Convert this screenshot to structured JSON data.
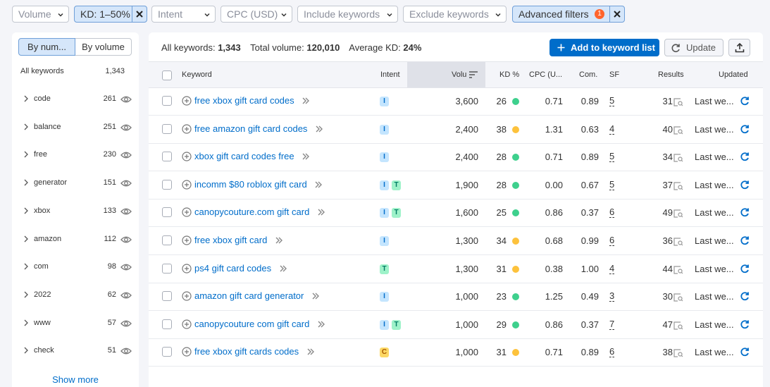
{
  "filters": {
    "volume": "Volume",
    "kd": "KD: 1–50%",
    "intent": "Intent",
    "cpc": "CPC (USD)",
    "include": "Include keywords",
    "exclude": "Exclude keywords",
    "advanced": "Advanced filters",
    "advanced_count": "1"
  },
  "sidebar": {
    "by_number": "By num...",
    "by_volume": "By volume",
    "all_label": "All keywords",
    "all_count": "1,343",
    "groups": [
      {
        "name": "code",
        "count": "261"
      },
      {
        "name": "balance",
        "count": "251"
      },
      {
        "name": "free",
        "count": "230"
      },
      {
        "name": "generator",
        "count": "151"
      },
      {
        "name": "xbox",
        "count": "133"
      },
      {
        "name": "amazon",
        "count": "112"
      },
      {
        "name": "com",
        "count": "98"
      },
      {
        "name": "2022",
        "count": "62"
      },
      {
        "name": "www",
        "count": "57"
      },
      {
        "name": "check",
        "count": "51"
      }
    ],
    "show_more": "Show more"
  },
  "summary": {
    "all_label": "All keywords:",
    "all_value": "1,343",
    "volume_label": "Total volume:",
    "volume_value": "120,010",
    "kd_label": "Average KD:",
    "kd_value": "24%"
  },
  "actions": {
    "add": "Add to keyword list",
    "update": "Update"
  },
  "table": {
    "headers": {
      "keyword": "Keyword",
      "intent": "Intent",
      "volume": "Volu",
      "kd": "KD %",
      "cpc": "CPC (U...",
      "com": "Com.",
      "sf": "SF",
      "results": "Results",
      "updated": "Updated"
    },
    "rows": [
      {
        "keyword": "free xbox gift card codes",
        "intents": [
          "I"
        ],
        "volume": "3,600",
        "kd": "26",
        "kd_color": "#3ed08d",
        "cpc": "0.71",
        "com": "0.89",
        "sf": "5",
        "results": "31",
        "updated": "Last we..."
      },
      {
        "keyword": "free amazon gift card codes",
        "intents": [
          "I"
        ],
        "volume": "2,400",
        "kd": "38",
        "kd_color": "#fdc23c",
        "cpc": "1.31",
        "com": "0.63",
        "sf": "4",
        "results": "40",
        "updated": "Last we..."
      },
      {
        "keyword": "xbox gift card codes free",
        "intents": [
          "I"
        ],
        "volume": "2,400",
        "kd": "28",
        "kd_color": "#3ed08d",
        "cpc": "0.71",
        "com": "0.89",
        "sf": "5",
        "results": "34",
        "updated": "Last we..."
      },
      {
        "keyword": "incomm $80 roblox gift card",
        "intents": [
          "I",
          "T"
        ],
        "volume": "1,900",
        "kd": "28",
        "kd_color": "#3ed08d",
        "cpc": "0.00",
        "com": "0.67",
        "sf": "5",
        "results": "37",
        "updated": "Last we..."
      },
      {
        "keyword": "canopycouture.com gift card",
        "intents": [
          "I",
          "T"
        ],
        "volume": "1,600",
        "kd": "25",
        "kd_color": "#3ed08d",
        "cpc": "0.86",
        "com": "0.37",
        "sf": "6",
        "results": "49",
        "updated": "Last we..."
      },
      {
        "keyword": "free xbox gift card",
        "intents": [
          "I"
        ],
        "volume": "1,300",
        "kd": "34",
        "kd_color": "#fdc23c",
        "cpc": "0.68",
        "com": "0.99",
        "sf": "6",
        "results": "36",
        "updated": "Last we..."
      },
      {
        "keyword": "ps4 gift card codes",
        "intents": [
          "T"
        ],
        "volume": "1,300",
        "kd": "31",
        "kd_color": "#fdc23c",
        "cpc": "0.38",
        "com": "1.00",
        "sf": "4",
        "results": "44",
        "updated": "Last we..."
      },
      {
        "keyword": "amazon gift card generator",
        "intents": [
          "I"
        ],
        "volume": "1,000",
        "kd": "23",
        "kd_color": "#3ed08d",
        "cpc": "1.25",
        "com": "0.49",
        "sf": "3",
        "results": "30",
        "updated": "Last we..."
      },
      {
        "keyword": "canopycouture com gift card",
        "intents": [
          "I",
          "T"
        ],
        "volume": "1,000",
        "kd": "29",
        "kd_color": "#3ed08d",
        "cpc": "0.86",
        "com": "0.37",
        "sf": "7",
        "results": "47",
        "updated": "Last we..."
      },
      {
        "keyword": "free xbox gift cards codes",
        "intents": [
          "C"
        ],
        "volume": "1,000",
        "kd": "31",
        "kd_color": "#fdc23c",
        "cpc": "0.71",
        "com": "0.89",
        "sf": "6",
        "results": "38",
        "updated": "Last we..."
      }
    ]
  },
  "icons": {
    "filter_chevron": "chevron-down-icon",
    "filter_remove": "close-icon",
    "group_expand": "chevron-right-icon",
    "group_view": "eye-icon",
    "add": "plus-icon",
    "update": "refresh-icon",
    "export": "export-icon",
    "sort": "sort-icon",
    "keyword_add": "add-circle-icon",
    "keyword_more": "double-chevron-icon",
    "serp": "serp-icon",
    "row_refresh": "refresh-icon"
  },
  "colors": {
    "accent": "#006dca",
    "kd_easy": "#3ed08d",
    "kd_medium": "#fdc23c",
    "badge": "#ff642d"
  }
}
